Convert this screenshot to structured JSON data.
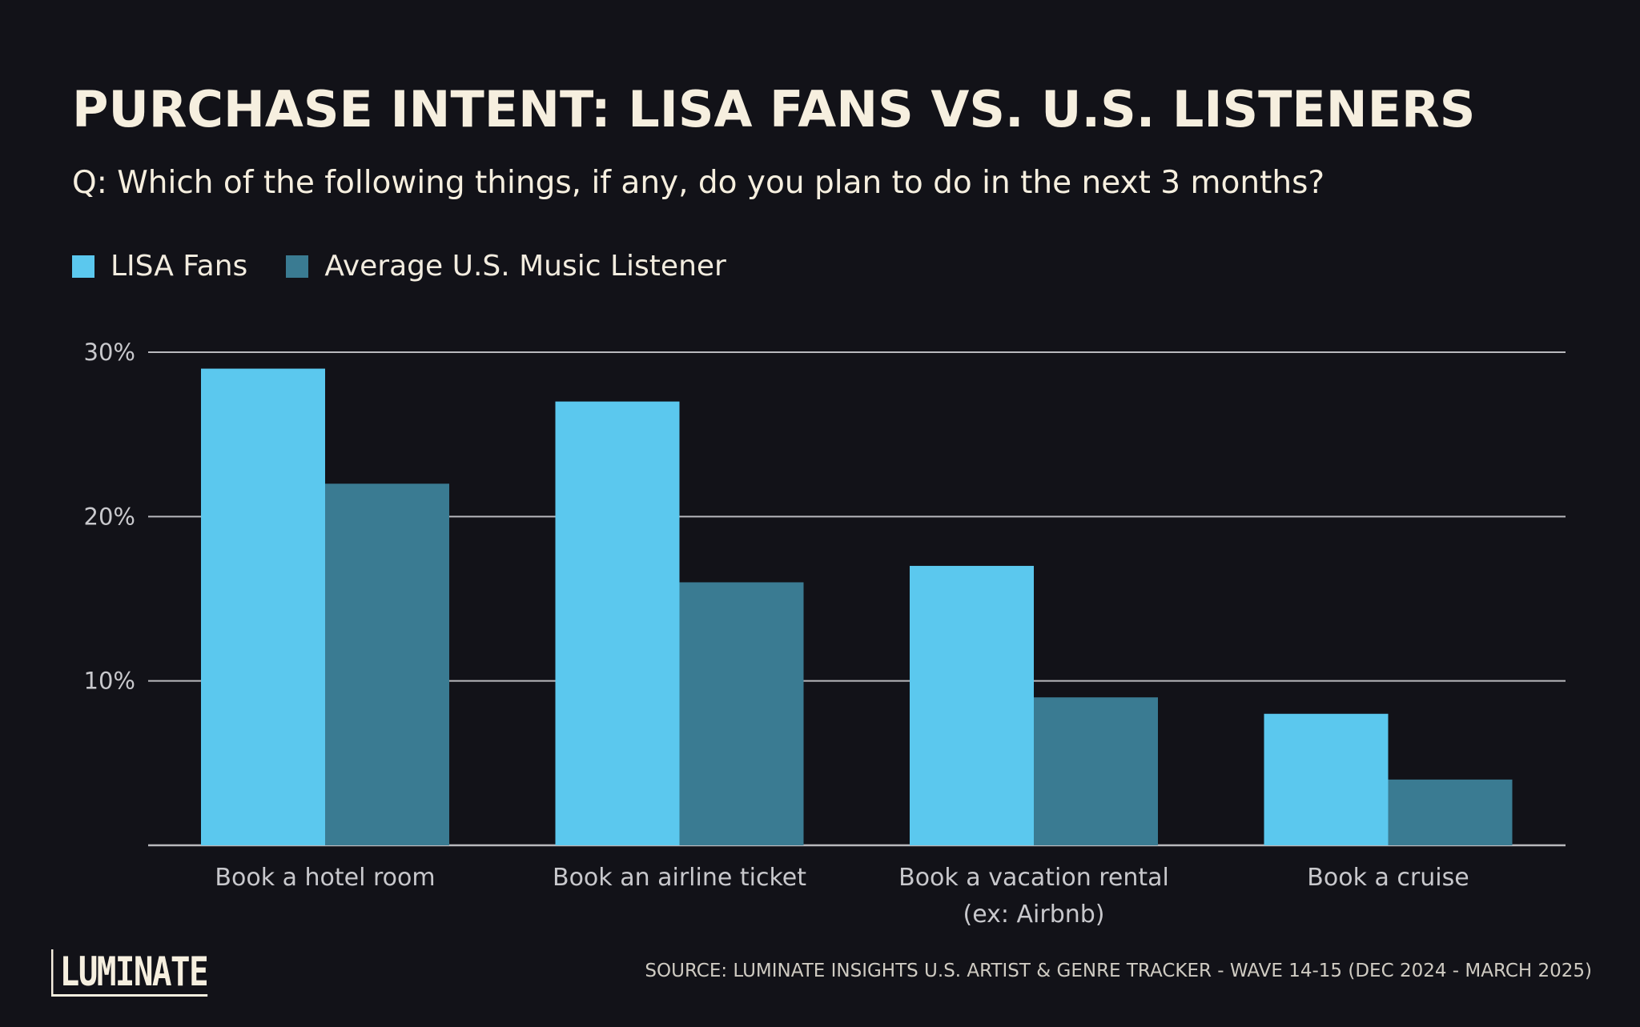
{
  "colors": {
    "background": "#121218",
    "title": "#f6efdf",
    "lisa_fans": "#5bc8ee",
    "average_listener": "#3a7b92",
    "gridline": "#b9b9bd",
    "tick_text": "#c8c8cc"
  },
  "brand": {
    "logo": "LUMINATE"
  },
  "source": "SOURCE: LUMINATE INSIGHTS U.S. ARTIST & GENRE TRACKER - WAVE 14-15 (DEC 2024 - MARCH 2025)",
  "chart_data": {
    "type": "bar",
    "title": "PURCHASE INTENT: LISA FANS VS. U.S. LISTENERS",
    "subtitle": "Q: Which of the following things, if any, do you plan to do in the next 3 months?",
    "categories": [
      [
        "Book a hotel room"
      ],
      [
        "Book an airline ticket"
      ],
      [
        "Book a vacation rental",
        "(ex: Airbnb)"
      ],
      [
        "Book a cruise"
      ]
    ],
    "series": [
      {
        "name": "LISA Fans",
        "color": "#5bc8ee",
        "values": [
          29,
          27,
          17,
          8
        ]
      },
      {
        "name": "Average U.S. Music Listener",
        "color": "#3a7b92",
        "values": [
          22,
          16,
          9,
          4
        ]
      }
    ],
    "y_ticks": [
      10,
      20,
      30
    ],
    "y_tick_labels": [
      "10%",
      "20%",
      "30%"
    ],
    "ylim": [
      0,
      30
    ],
    "grid": true,
    "legend_position": "top-left"
  }
}
